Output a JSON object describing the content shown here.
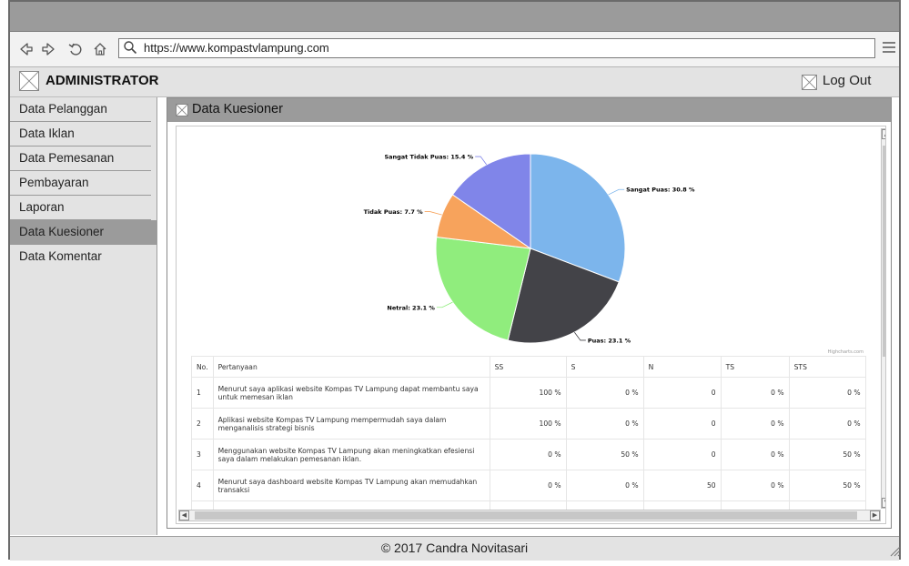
{
  "browser": {
    "url": "https://www.kompastvlampung.com",
    "icons": [
      "back-icon",
      "forward-icon",
      "reload-icon",
      "home-icon",
      "search-icon",
      "menu-icon"
    ]
  },
  "header": {
    "title": "ADMINISTRATOR",
    "logout_label": "Log Out"
  },
  "sidebar": {
    "items": [
      {
        "label": "Data Pelanggan",
        "active": false
      },
      {
        "label": "Data Iklan",
        "active": false
      },
      {
        "label": "Data Pemesanan",
        "active": false
      },
      {
        "label": "Pembayaran",
        "active": false
      },
      {
        "label": "Laporan",
        "active": false
      },
      {
        "label": "Data Kuesioner",
        "active": true
      },
      {
        "label": "Data Komentar",
        "active": false
      }
    ]
  },
  "panel": {
    "title": "Data Kuesioner"
  },
  "chart_data": {
    "type": "pie",
    "series": [
      {
        "label": "Sangat Puas: 30.8 %",
        "value": 30.8,
        "color": "#7cb5ec"
      },
      {
        "label": "Puas: 23.1 %",
        "value": 23.1,
        "color": "#434348"
      },
      {
        "label": "Netral: 23.1 %",
        "value": 23.1,
        "color": "#90ed7d"
      },
      {
        "label": "Tidak Puas: 7.7 %",
        "value": 7.7,
        "color": "#f7a35c"
      },
      {
        "label": "Sangat Tidak Puas: 15.4 %",
        "value": 15.4,
        "color": "#8085e9"
      }
    ],
    "credit": "Highcharts.com"
  },
  "table": {
    "headers": [
      "No.",
      "Pertanyaan",
      "SS",
      "S",
      "N",
      "TS",
      "STS"
    ],
    "rows": [
      [
        "1",
        "Menurut saya aplikasi website Kompas TV Lampung dapat membantu saya untuk memesan iklan",
        "100 %",
        "0 %",
        "0",
        "0 %",
        "0 %"
      ],
      [
        "2",
        "Aplikasi website Kompas TV Lampung mempermudah saya dalam menganalisis strategi bisnis",
        "100 %",
        "0 %",
        "0",
        "0 %",
        "0 %"
      ],
      [
        "3",
        "Menggunakan website Kompas TV Lampung akan meningkatkan efesiensi saya dalam melakukan pemesanan iklan.",
        "0 %",
        "50 %",
        "0",
        "0 %",
        "50 %"
      ],
      [
        "4",
        "Menurut saya dashboard website Kompas TV Lampung akan memudahkan transaksi",
        "0 %",
        "0 %",
        "50",
        "0 %",
        "50 %"
      ]
    ]
  },
  "footer": {
    "copyright": "© 2017 Candra Novitasari"
  }
}
